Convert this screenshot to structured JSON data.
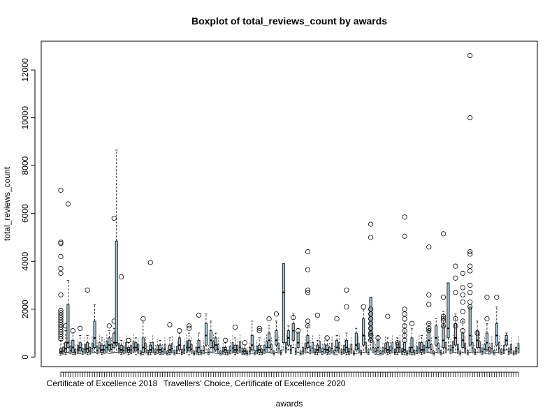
{
  "chart_data": {
    "type": "boxplot",
    "title": "Boxplot of total_reviews_count by awards",
    "xlabel": "awards",
    "ylabel": "total_reviews_count",
    "ylim": [
      -400,
      13200
    ],
    "yticks": [
      0,
      2000,
      4000,
      6000,
      8000,
      10000,
      12000
    ],
    "group_count": 190,
    "box_fill": "#a9c4cf",
    "labeled_categories": [
      {
        "label": "Certificate of Excellence 2018",
        "group_index": 17
      },
      {
        "label": "Travellers' Choice, Certificate of Excellence 2020",
        "group_index": 80
      }
    ],
    "groups": [
      {
        "g": 0,
        "min": 80,
        "q1": 150,
        "median": 220,
        "q3": 340,
        "max": 700,
        "outliers": [
          750,
          850,
          950,
          1050,
          1150,
          1250,
          1350,
          1450,
          1550,
          1650,
          1750,
          1850,
          1950,
          2600,
          3500,
          3700,
          4200,
          4750,
          4800,
          6970
        ]
      },
      {
        "g": 2,
        "min": 100,
        "q1": 200,
        "median": 350,
        "q3": 600,
        "max": 1100,
        "outliers": [
          1300
        ]
      },
      {
        "g": 3,
        "min": 200,
        "q1": 400,
        "median": 600,
        "q3": 2200,
        "max": 3200,
        "outliers": [
          6400
        ]
      },
      {
        "g": 5,
        "min": 100,
        "q1": 200,
        "median": 400,
        "q3": 700,
        "max": 1000,
        "outliers": [
          1100
        ]
      },
      {
        "g": 8,
        "min": 150,
        "q1": 250,
        "median": 400,
        "q3": 600,
        "max": 900,
        "outliers": [
          1200
        ]
      },
      {
        "g": 11,
        "min": 100,
        "q1": 200,
        "median": 350,
        "q3": 600,
        "max": 900,
        "outliers": [
          2800
        ]
      },
      {
        "g": 14,
        "min": 200,
        "q1": 400,
        "median": 800,
        "q3": 1500,
        "max": 2200,
        "outliers": []
      },
      {
        "g": 17,
        "min": 100,
        "q1": 200,
        "median": 300,
        "q3": 500,
        "max": 800,
        "outliers": []
      },
      {
        "g": 20,
        "min": 150,
        "q1": 300,
        "median": 500,
        "q3": 800,
        "max": 1100,
        "outliers": [
          1300
        ]
      },
      {
        "g": 22,
        "min": 200,
        "q1": 400,
        "median": 600,
        "q3": 1000,
        "max": 1200,
        "outliers": [
          1500,
          5800
        ]
      },
      {
        "g": 23,
        "min": 200,
        "q1": 500,
        "median": 600,
        "q3": 4850,
        "max": 8650,
        "outliers": []
      },
      {
        "g": 25,
        "min": 100,
        "q1": 200,
        "median": 300,
        "q3": 500,
        "max": 700,
        "outliers": [
          3350
        ]
      },
      {
        "g": 28,
        "min": 100,
        "q1": 200,
        "median": 300,
        "q3": 400,
        "max": 600,
        "outliers": [
          700
        ]
      },
      {
        "g": 31,
        "min": 100,
        "q1": 250,
        "median": 400,
        "q3": 600,
        "max": 800,
        "outliers": []
      },
      {
        "g": 34,
        "min": 100,
        "q1": 200,
        "median": 400,
        "q3": 800,
        "max": 1500,
        "outliers": [
          1600
        ]
      },
      {
        "g": 37,
        "min": 100,
        "q1": 200,
        "median": 300,
        "q3": 500,
        "max": 600,
        "outliers": [
          3950
        ]
      },
      {
        "g": 41,
        "min": 100,
        "q1": 200,
        "median": 300,
        "q3": 500,
        "max": 700,
        "outliers": []
      },
      {
        "g": 45,
        "min": 100,
        "q1": 200,
        "median": 300,
        "q3": 500,
        "max": 800,
        "outliers": [
          1350
        ]
      },
      {
        "g": 49,
        "min": 150,
        "q1": 300,
        "median": 500,
        "q3": 800,
        "max": 1000,
        "outliers": [
          1100
        ]
      },
      {
        "g": 53,
        "min": 100,
        "q1": 250,
        "median": 400,
        "q3": 700,
        "max": 1000,
        "outliers": [
          1200,
          1300
        ]
      },
      {
        "g": 57,
        "min": 100,
        "q1": 200,
        "median": 400,
        "q3": 700,
        "max": 1000,
        "outliers": [
          1750
        ]
      },
      {
        "g": 60,
        "min": 200,
        "q1": 500,
        "median": 900,
        "q3": 1400,
        "max": 1800,
        "outliers": []
      },
      {
        "g": 62,
        "min": 200,
        "q1": 400,
        "median": 700,
        "q3": 1100,
        "max": 1500,
        "outliers": []
      },
      {
        "g": 64,
        "min": 150,
        "q1": 300,
        "median": 500,
        "q3": 800,
        "max": 1000,
        "outliers": []
      },
      {
        "g": 68,
        "min": 100,
        "q1": 200,
        "median": 300,
        "q3": 400,
        "max": 600,
        "outliers": [
          700
        ]
      },
      {
        "g": 72,
        "min": 100,
        "q1": 200,
        "median": 300,
        "q3": 500,
        "max": 800,
        "outliers": [
          1250
        ]
      },
      {
        "g": 76,
        "min": 100,
        "q1": 150,
        "median": 250,
        "q3": 350,
        "max": 500,
        "outliers": [
          600
        ]
      },
      {
        "g": 79,
        "min": 150,
        "q1": 300,
        "median": 500,
        "q3": 900,
        "max": 1500,
        "outliers": []
      },
      {
        "g": 82,
        "min": 100,
        "q1": 200,
        "median": 300,
        "q3": 500,
        "max": 800,
        "outliers": [
          1100,
          1200
        ]
      },
      {
        "g": 86,
        "min": 200,
        "q1": 400,
        "median": 700,
        "q3": 1000,
        "max": 1300,
        "outliers": [
          1600
        ]
      },
      {
        "g": 89,
        "min": 200,
        "q1": 500,
        "median": 700,
        "q3": 1100,
        "max": 1500,
        "outliers": [
          1800
        ]
      },
      {
        "g": 92,
        "min": 300,
        "q1": 600,
        "median": 2700,
        "q3": 3900,
        "max": 3900,
        "outliers": []
      },
      {
        "g": 94,
        "min": 300,
        "q1": 500,
        "median": 800,
        "q3": 1100,
        "max": 1300,
        "outliers": []
      },
      {
        "g": 96,
        "min": 400,
        "q1": 700,
        "median": 1100,
        "q3": 1400,
        "max": 1800,
        "outliers": [
          1650
        ]
      },
      {
        "g": 98,
        "min": 200,
        "q1": 400,
        "median": 600,
        "q3": 1000,
        "max": 1200,
        "outliers": [
          1100
        ]
      },
      {
        "g": 102,
        "min": 200,
        "q1": 400,
        "median": 600,
        "q3": 900,
        "max": 1300,
        "outliers": [
          1300,
          1500,
          2700,
          3650,
          4400,
          2800
        ]
      },
      {
        "g": 106,
        "min": 100,
        "q1": 200,
        "median": 300,
        "q3": 500,
        "max": 700,
        "outliers": [
          1750
        ]
      },
      {
        "g": 110,
        "min": 100,
        "q1": 200,
        "median": 300,
        "q3": 500,
        "max": 700,
        "outliers": [
          800
        ]
      },
      {
        "g": 114,
        "min": 100,
        "q1": 250,
        "median": 400,
        "q3": 700,
        "max": 900,
        "outliers": [
          1600
        ]
      },
      {
        "g": 118,
        "min": 100,
        "q1": 200,
        "median": 400,
        "q3": 700,
        "max": 1000,
        "outliers": [
          2100,
          2800
        ]
      },
      {
        "g": 122,
        "min": 150,
        "q1": 300,
        "median": 500,
        "q3": 1000,
        "max": 1200,
        "outliers": []
      },
      {
        "g": 125,
        "min": 200,
        "q1": 500,
        "median": 900,
        "q3": 1600,
        "max": 2000,
        "outliers": [
          2100
        ]
      },
      {
        "g": 128,
        "min": 300,
        "q1": 700,
        "median": 1100,
        "q3": 2500,
        "max": 2500,
        "outliers": [
          700,
          900,
          1000,
          1200,
          1400,
          1600,
          1800,
          2000,
          5000,
          5550
        ]
      },
      {
        "g": 131,
        "min": 100,
        "q1": 250,
        "median": 400,
        "q3": 700,
        "max": 900,
        "outliers": [
          800
        ]
      },
      {
        "g": 135,
        "min": 100,
        "q1": 200,
        "median": 300,
        "q3": 600,
        "max": 800,
        "outliers": [
          1700
        ]
      },
      {
        "g": 139,
        "min": 100,
        "q1": 200,
        "median": 400,
        "q3": 600,
        "max": 800,
        "outliers": [
          600
        ]
      },
      {
        "g": 142,
        "min": 100,
        "q1": 200,
        "median": 300,
        "q3": 600,
        "max": 1500,
        "outliers": [
          700,
          900,
          1100,
          1300,
          1600,
          1800,
          2000,
          5050,
          5850
        ]
      },
      {
        "g": 145,
        "min": 100,
        "q1": 200,
        "median": 400,
        "q3": 800,
        "max": 1200,
        "outliers": [
          1400
        ]
      },
      {
        "g": 149,
        "min": 100,
        "q1": 200,
        "median": 300,
        "q3": 600,
        "max": 900,
        "outliers": []
      },
      {
        "g": 152,
        "min": 200,
        "q1": 400,
        "median": 700,
        "q3": 1100,
        "max": 1400,
        "outliers": [
          1100,
          1200,
          1400,
          2200,
          2600,
          4600
        ]
      },
      {
        "g": 155,
        "min": 200,
        "q1": 500,
        "median": 800,
        "q3": 1300,
        "max": 1600,
        "outliers": []
      },
      {
        "g": 158,
        "min": 150,
        "q1": 400,
        "median": 700,
        "q3": 1300,
        "max": 1900,
        "outliers": [
          1300,
          1500,
          1600,
          1700,
          2500,
          5150
        ]
      },
      {
        "g": 160,
        "min": 300,
        "q1": 800,
        "median": 1200,
        "q3": 3100,
        "max": 3100,
        "outliers": []
      },
      {
        "g": 163,
        "min": 200,
        "q1": 500,
        "median": 800,
        "q3": 1400,
        "max": 1800,
        "outliers": [
          1300,
          1600,
          2700,
          3300,
          3800
        ]
      },
      {
        "g": 166,
        "min": 200,
        "q1": 400,
        "median": 700,
        "q3": 1000,
        "max": 1500,
        "outliers": [
          1100,
          1500,
          1900,
          2300,
          2600,
          2900,
          3500
        ]
      },
      {
        "g": 169,
        "min": 200,
        "q1": 500,
        "median": 900,
        "q3": 2100,
        "max": 2100,
        "outliers": [
          2100,
          2300,
          2700,
          3000,
          3600,
          3800,
          4300,
          4400,
          10000,
          12600
        ]
      },
      {
        "g": 172,
        "min": 200,
        "q1": 400,
        "median": 700,
        "q3": 1100,
        "max": 1500,
        "outliers": [
          1000
        ]
      },
      {
        "g": 176,
        "min": 150,
        "q1": 300,
        "median": 600,
        "q3": 1000,
        "max": 1400,
        "outliers": [
          1600,
          2500
        ]
      },
      {
        "g": 180,
        "min": 200,
        "q1": 500,
        "median": 900,
        "q3": 1400,
        "max": 2100,
        "outliers": [
          2500
        ]
      },
      {
        "g": 184,
        "min": 300,
        "q1": 500,
        "median": 700,
        "q3": 900,
        "max": 1000,
        "outliers": []
      }
    ]
  }
}
